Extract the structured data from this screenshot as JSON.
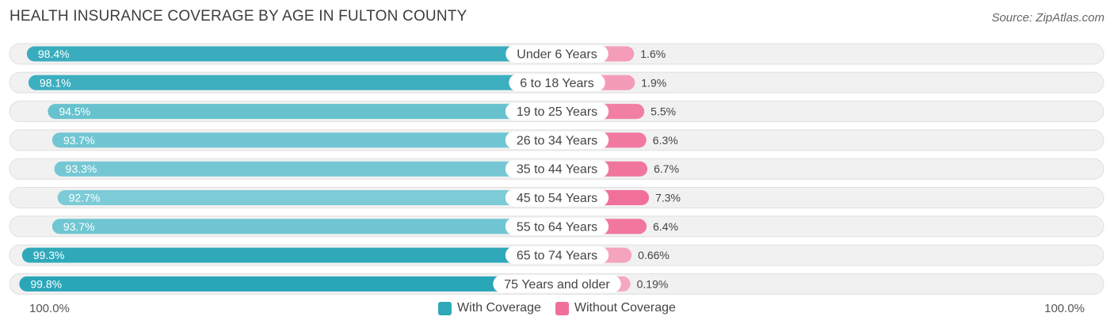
{
  "title": "HEALTH INSURANCE COVERAGE BY AGE IN FULTON COUNTY",
  "source": "Source: ZipAtlas.com",
  "colors": {
    "with_dark": "#29a6b8",
    "with_light": "#7ccbd6",
    "without_dark": "#f07099",
    "without_light": "#f5a8c0",
    "legend_with": "#2fa9b9",
    "legend_without": "#f06f9b"
  },
  "legend": {
    "with": "With Coverage",
    "without": "Without Coverage"
  },
  "axis": {
    "left": "100.0%",
    "right": "100.0%"
  },
  "chart_data": {
    "type": "bar",
    "orientation": "diverging-horizontal",
    "title": "HEALTH INSURANCE COVERAGE BY AGE IN FULTON COUNTY",
    "categories": [
      "Under 6 Years",
      "6 to 18 Years",
      "19 to 25 Years",
      "26 to 34 Years",
      "35 to 44 Years",
      "45 to 54 Years",
      "55 to 64 Years",
      "65 to 74 Years",
      "75 Years and older"
    ],
    "series": [
      {
        "name": "With Coverage",
        "values": [
          98.4,
          98.1,
          94.5,
          93.7,
          93.3,
          92.7,
          93.7,
          99.3,
          99.8
        ],
        "labels": [
          "98.4%",
          "98.1%",
          "94.5%",
          "93.7%",
          "93.3%",
          "92.7%",
          "93.7%",
          "99.3%",
          "99.8%"
        ]
      },
      {
        "name": "Without Coverage",
        "values": [
          1.6,
          1.9,
          5.5,
          6.3,
          6.7,
          7.3,
          6.4,
          0.66,
          0.19
        ],
        "labels": [
          "1.6%",
          "1.9%",
          "5.5%",
          "6.3%",
          "6.7%",
          "7.3%",
          "6.4%",
          "0.66%",
          "0.19%"
        ]
      }
    ],
    "xlim_left": [
      0,
      100
    ],
    "xlim_right": [
      0,
      100
    ],
    "legend_position": "bottom-center"
  }
}
